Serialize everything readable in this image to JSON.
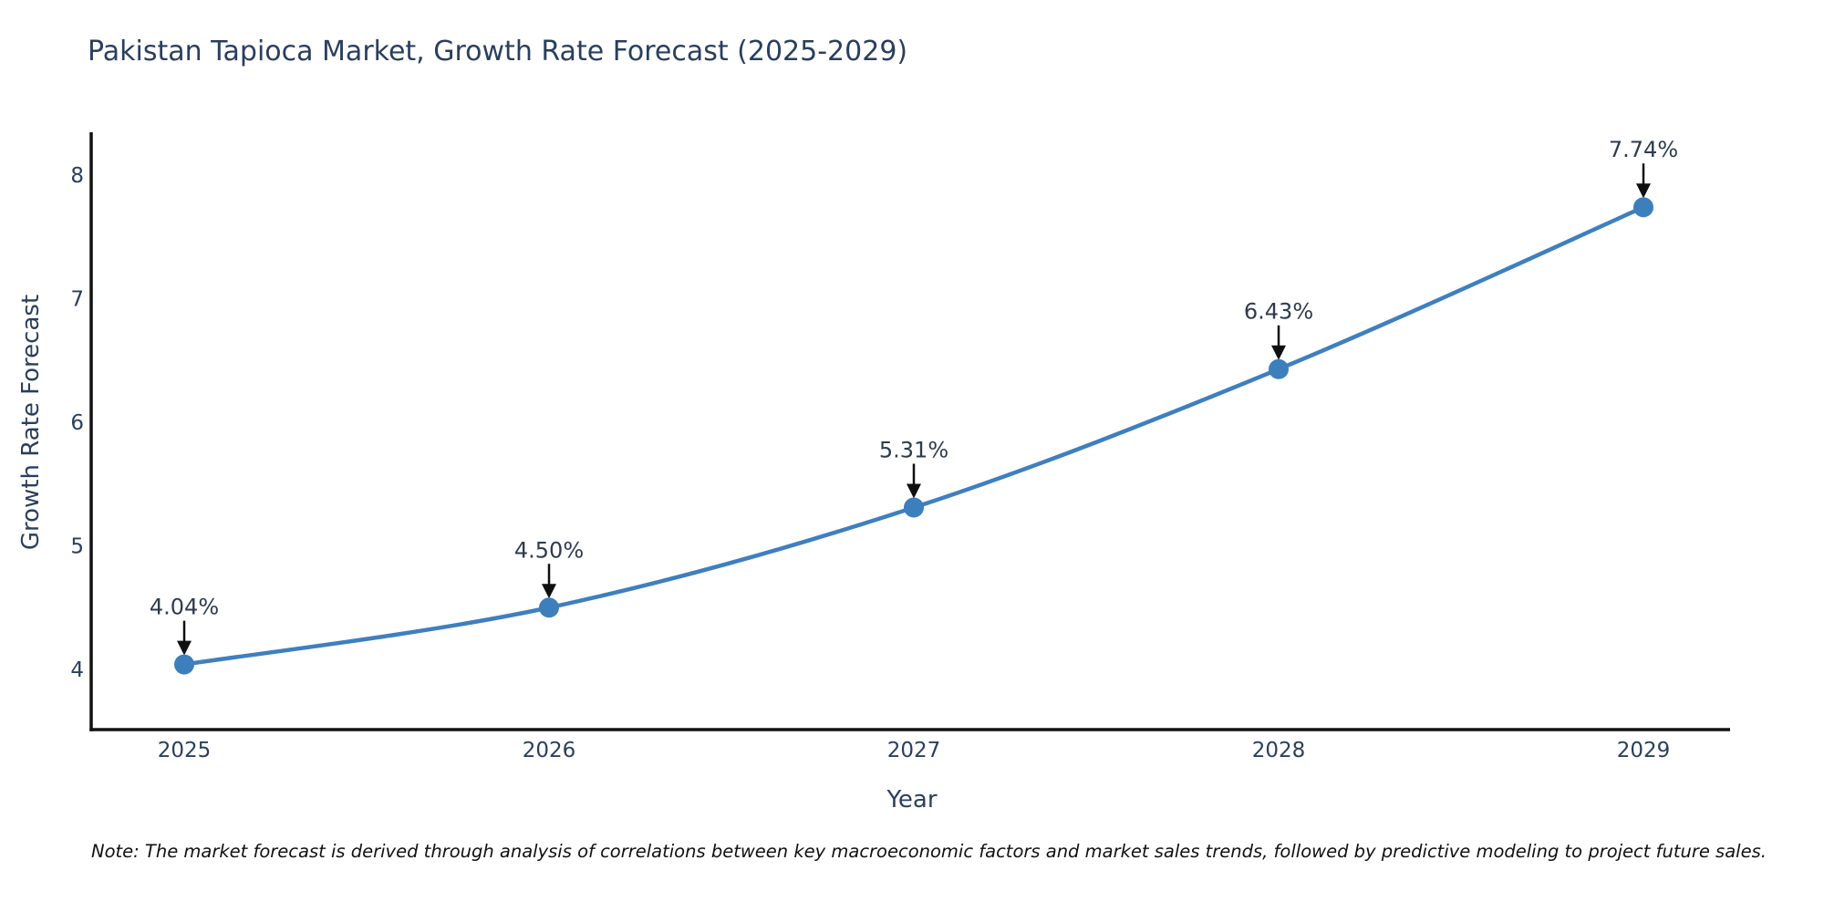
{
  "title": "Pakistan Tapioca Market, Growth Rate Forecast (2025-2029)",
  "note": "Note: The market forecast is derived through analysis of correlations between key macroeconomic factors and market sales trends, followed by predictive modeling to project future sales.",
  "chart_data": {
    "type": "line",
    "title": "Pakistan Tapioca Market, Growth Rate Forecast (2025-2029)",
    "xlabel": "Year",
    "ylabel": "Growth Rate Forecast",
    "categories": [
      "2025",
      "2026",
      "2027",
      "2028",
      "2029"
    ],
    "x": [
      2025,
      2026,
      2027,
      2028,
      2029
    ],
    "values": [
      4.04,
      4.5,
      5.31,
      6.43,
      7.74
    ],
    "point_labels": [
      "4.04%",
      "4.50%",
      "5.31%",
      "6.43%",
      "7.74%"
    ],
    "yticks": [
      8,
      7,
      6,
      5,
      4
    ],
    "ytick_labels": [
      "8",
      "7",
      "6",
      "5",
      "4"
    ],
    "ylim": [
      3.5,
      8.35
    ],
    "xlim": [
      2024.74,
      2029.26
    ],
    "grid": false,
    "legend": "none",
    "line_color": "#3f7fbf",
    "marker_color": "#3d7ebd",
    "axis_color": "#111111",
    "text_color": "#2a3f5f",
    "annotation_arrow_color": "#0f0f0f",
    "background_color": "#ffffff"
  }
}
